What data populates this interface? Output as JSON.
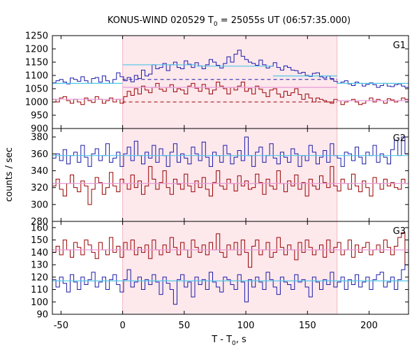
{
  "chart_data": {
    "type": "line",
    "title": "KONUS-WIND 020529 T",
    "title_sub": "0",
    "title_rest": " = 25055s UT (06:57:35.000)",
    "xlabel": "T - T",
    "xlabel_sub": "0",
    "xlabel_rest": ", s",
    "ylabel": "counts / sec",
    "xlim": [
      -57,
      232
    ],
    "x_ticks": [
      -50,
      0,
      50,
      100,
      150,
      200
    ],
    "highlight_interval": [
      0,
      174
    ],
    "colors": {
      "blue": "#1a1aa8",
      "red": "#9a0000",
      "blue_fit": "#4fc7e8",
      "red_fit": "#e89ad8",
      "highlight": "#fde8ec",
      "dashed_blue": "#1a1aa8",
      "dashed_red": "#9a0000"
    },
    "panels": [
      {
        "label": "G1",
        "ylim": [
          900,
          1250
        ],
        "y_ticks": [
          900,
          950,
          1000,
          1050,
          1100,
          1150,
          1200,
          1250
        ],
        "blue_fit": [
          {
            "x0": -57,
            "x1": 0,
            "y": 1070
          },
          {
            "x0": 0,
            "x1": 60,
            "y": 1140
          },
          {
            "x0": 60,
            "x1": 122,
            "y": 1135
          },
          {
            "x0": 122,
            "x1": 174,
            "y": 1098
          },
          {
            "x0": 174,
            "x1": 232,
            "y": 1070
          }
        ],
        "red_fit": [
          {
            "x0": -57,
            "x1": 0,
            "y": 1010
          },
          {
            "x0": 0,
            "x1": 174,
            "y": 1055
          },
          {
            "x0": 174,
            "x1": 232,
            "y": 1005
          }
        ],
        "dashed_blue": [
          {
            "x0": 0,
            "x1": 174,
            "y": 1085
          }
        ],
        "dashed_red": [
          {
            "x0": 0,
            "x1": 174,
            "y": 1000
          }
        ],
        "blue_series": [
          1072,
          1080,
          1085,
          1075,
          1068,
          1090,
          1085,
          1078,
          1095,
          1080,
          1070,
          1088,
          1092,
          1075,
          1098,
          1080,
          1070,
          1085,
          1110,
          1095,
          1080,
          1092,
          1076,
          1100,
          1088,
          1120,
          1098,
          1105,
          1140,
          1125,
          1130,
          1145,
          1118,
          1140,
          1150,
          1130,
          1125,
          1155,
          1142,
          1130,
          1148,
          1136,
          1125,
          1140,
          1160,
          1150,
          1138,
          1128,
          1145,
          1170,
          1150,
          1180,
          1195,
          1172,
          1160,
          1150,
          1145,
          1138,
          1158,
          1140,
          1128,
          1135,
          1148,
          1130,
          1120,
          1136,
          1130,
          1120,
          1118,
          1108,
          1112,
          1100,
          1096,
          1108,
          1110,
          1095,
          1090,
          1098,
          1088,
          1078,
          1070,
          1075,
          1080,
          1068,
          1062,
          1075,
          1070,
          1060,
          1066,
          1072,
          1065,
          1055,
          1062,
          1070,
          1060,
          1058,
          1065,
          1068,
          1060,
          1055
        ],
        "red_series": [
          1010,
          1000,
          1015,
          1020,
          1005,
          995,
          1010,
          1000,
          990,
          1015,
          1005,
          998,
          1020,
          1010,
          995,
          1005,
          1015,
          1000,
          1010,
          995,
          1020,
          1040,
          1025,
          1050,
          1030,
          1060,
          1045,
          1035,
          1055,
          1070,
          1048,
          1040,
          1055,
          1065,
          1038,
          1050,
          1045,
          1030,
          1060,
          1070,
          1052,
          1040,
          1066,
          1050,
          1030,
          1045,
          1075,
          1060,
          1050,
          1030,
          1055,
          1045,
          1060,
          1075,
          1040,
          1050,
          1030,
          1060,
          1048,
          1035,
          1020,
          1045,
          1050,
          1030,
          1018,
          1040,
          1025,
          1035,
          1050,
          1028,
          1010,
          1030,
          1015,
          1000,
          1015,
          1010,
          1005,
          1000,
          995,
          1010,
          1005,
          990,
          1000,
          1005,
          1010,
          1000,
          990,
          995,
          1005,
          1015,
          1000,
          1010,
          1005,
          995,
          1012,
          1008,
          1000,
          1005,
          1015,
          1010
        ]
      },
      {
        "label": "G2",
        "ylim": [
          280,
          390
        ],
        "y_ticks": [
          280,
          300,
          320,
          340,
          360,
          380
        ],
        "blue_fit": [
          {
            "x0": -57,
            "x1": 232,
            "y": 358
          }
        ],
        "red_fit": [
          {
            "x0": -57,
            "x1": 232,
            "y": 325
          }
        ],
        "dashed_blue": [],
        "dashed_red": [],
        "blue_series": [
          355,
          360,
          352,
          365,
          348,
          358,
          362,
          350,
          370,
          356,
          345,
          360,
          366,
          352,
          358,
          372,
          350,
          355,
          362,
          345,
          360,
          368,
          352,
          375,
          358,
          348,
          362,
          355,
          370,
          350,
          366,
          358,
          345,
          362,
          372,
          350,
          360,
          355,
          348,
          368,
          360,
          352,
          374,
          356,
          345,
          362,
          358,
          350,
          370,
          360,
          348,
          356,
          364,
          352,
          380,
          358,
          345,
          362,
          368,
          350,
          358,
          372,
          355,
          348,
          362,
          356,
          350,
          366,
          360,
          345,
          358,
          352,
          370,
          362,
          348,
          356,
          364,
          350,
          372,
          358,
          355,
          345,
          362,
          360,
          352,
          368,
          356,
          348,
          362,
          358,
          370,
          350,
          360,
          356,
          348,
          365,
          376,
          358,
          380,
          360
        ],
        "red_series": [
          322,
          330,
          318,
          310,
          325,
          335,
          320,
          315,
          328,
          322,
          300,
          318,
          332,
          326,
          312,
          320,
          338,
          322,
          315,
          330,
          325,
          318,
          335,
          320,
          328,
          312,
          322,
          345,
          330,
          318,
          326,
          340,
          320,
          312,
          330,
          324,
          318,
          336,
          322,
          315,
          328,
          320,
          332,
          318,
          310,
          326,
          340,
          322,
          318,
          330,
          325,
          316,
          334,
          322,
          328,
          318,
          320,
          336,
          326,
          312,
          330,
          322,
          318,
          340,
          325,
          315,
          328,
          322,
          335,
          318,
          326,
          310,
          330,
          322,
          318,
          334,
          326,
          320,
          345,
          322,
          316,
          330,
          325,
          318,
          336,
          322,
          315,
          328,
          320,
          310,
          332,
          325,
          318,
          330,
          322,
          326,
          320,
          318,
          330,
          325
        ]
      },
      {
        "label": "G3",
        "ylim": [
          90,
          165
        ],
        "y_ticks": [
          90,
          100,
          110,
          120,
          130,
          140,
          150,
          160
        ],
        "blue_fit": [
          {
            "x0": -57,
            "x1": 232,
            "y": 117
          }
        ],
        "red_fit": [
          {
            "x0": -57,
            "x1": 232,
            "y": 142
          }
        ],
        "dashed_blue": [],
        "dashed_red": [],
        "blue_series": [
          118,
          112,
          120,
          115,
          108,
          122,
          116,
          110,
          120,
          114,
          118,
          124,
          112,
          116,
          120,
          110,
          118,
          122,
          114,
          108,
          118,
          126,
          112,
          116,
          120,
          110,
          118,
          114,
          122,
          116,
          106,
          120,
          115,
          110,
          98,
          118,
          122,
          112,
          116,
          104,
          120,
          114,
          118,
          110,
          124,
          116,
          112,
          108,
          120,
          118,
          114,
          110,
          122,
          116,
          100,
          118,
          112,
          120,
          116,
          110,
          124,
          118,
          112,
          106,
          120,
          116,
          114,
          110,
          122,
          116,
          118,
          112,
          104,
          120,
          116,
          110,
          118,
          114,
          124,
          112,
          116,
          120,
          110,
          118,
          114,
          122,
          112,
          116,
          120,
          110,
          118,
          122,
          124,
          112,
          116,
          120,
          110,
          118,
          126,
          130
        ],
        "red_series": [
          140,
          145,
          138,
          150,
          142,
          136,
          148,
          144,
          138,
          150,
          146,
          140,
          135,
          148,
          142,
          138,
          152,
          140,
          145,
          136,
          148,
          142,
          150,
          138,
          144,
          140,
          146,
          135,
          150,
          142,
          138,
          146,
          140,
          152,
          144,
          138,
          148,
          142,
          136,
          150,
          144,
          140,
          146,
          138,
          148,
          142,
          155,
          140,
          136,
          146,
          142,
          148,
          138,
          150,
          140,
          128,
          145,
          150,
          138,
          142,
          148,
          136,
          140,
          152,
          144,
          138,
          146,
          142,
          134,
          148,
          140,
          150,
          144,
          138,
          142,
          146,
          136,
          150,
          140,
          144,
          148,
          138,
          142,
          150,
          136,
          146,
          140,
          144,
          148,
          138,
          142,
          146,
          140,
          150,
          144,
          138,
          145,
          152,
          156,
          130
        ]
      }
    ]
  }
}
